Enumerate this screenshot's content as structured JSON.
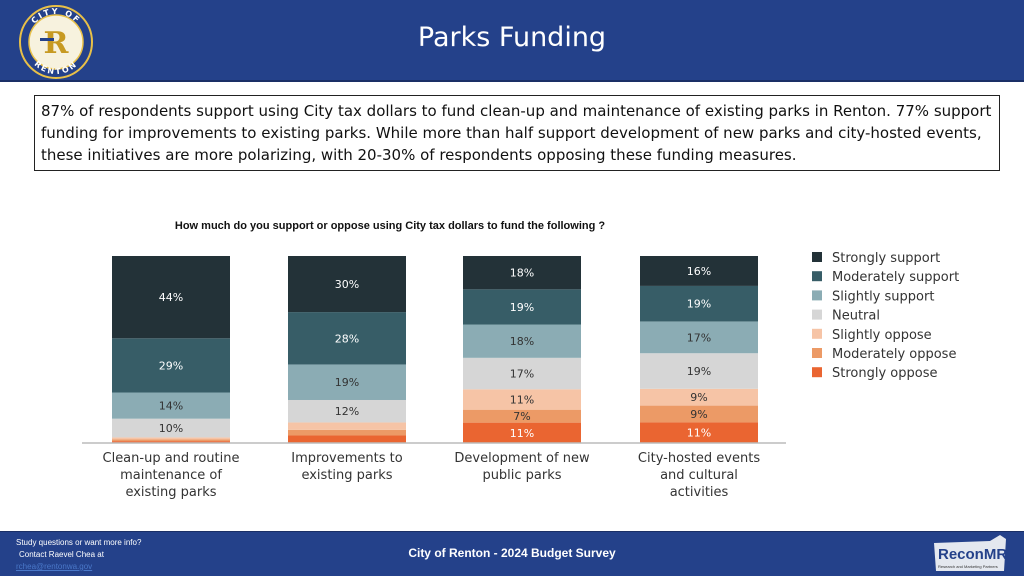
{
  "header": {
    "title": "Parks Funding",
    "logo_text_top": "CITY OF",
    "logo_text_bottom": "RENTON",
    "logo_letter": "R"
  },
  "summary": "87% of respondents support using City tax dollars to fund clean-up and maintenance of existing parks in Renton. 77% support funding for improvements to existing parks. While more than half support development of new parks and city-hosted events, these initiatives are more polarizing, with 20-30% of respondents opposing these funding measures.",
  "chart_data": {
    "type": "bar",
    "stacked": true,
    "title": "How much do you support or oppose using City tax dollars to fund the following ?",
    "categories": [
      [
        "Clean-up and routine",
        "maintenance of",
        "existing parks"
      ],
      [
        "Improvements to",
        "existing parks"
      ],
      [
        "Development of new",
        "public parks"
      ],
      [
        "City-hosted events",
        "and cultural",
        "activities"
      ]
    ],
    "series": [
      {
        "name": "Strongly support",
        "color": "#233238",
        "values": [
          44,
          30,
          18,
          16
        ]
      },
      {
        "name": "Moderately support",
        "color": "#375d67",
        "values": [
          29,
          28,
          19,
          19
        ]
      },
      {
        "name": "Slightly support",
        "color": "#8bacb4",
        "values": [
          14,
          19,
          18,
          17
        ]
      },
      {
        "name": "Neutral",
        "color": "#d6d6d6",
        "values": [
          10,
          12,
          17,
          19
        ]
      },
      {
        "name": "Slightly oppose",
        "color": "#f6c4a6",
        "values": [
          1,
          4,
          11,
          9
        ]
      },
      {
        "name": "Moderately oppose",
        "color": "#ec9a66",
        "values": [
          1,
          3,
          7,
          9
        ]
      },
      {
        "name": "Strongly oppose",
        "color": "#ea6531",
        "values": [
          1,
          4,
          11,
          11
        ]
      }
    ],
    "ylim": [
      0,
      100
    ],
    "xlabel": "",
    "ylabel": "",
    "legend": "right"
  },
  "footer": {
    "contact_line1": "Study questions or want more info?",
    "contact_line2": "Contact Raevel Chea at",
    "contact_email": "rchea@rentonwa.gov",
    "survey_name": "City of Renton - 2024 Budget Survey",
    "partner_logo_text": "ReconMR",
    "partner_tagline": "Research and Marketing Partners"
  }
}
